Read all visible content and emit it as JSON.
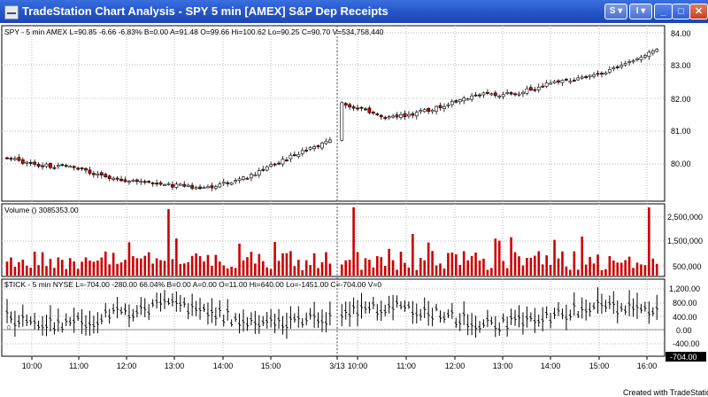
{
  "window": {
    "title": "TradeStation Chart Analysis - SPY  5 min  [AMEX] S&P Dep Receipts",
    "btn_s": "S ▾",
    "btn_i": "I ▾",
    "btn_min": "_",
    "btn_max": "□",
    "btn_close": "✕"
  },
  "price_panel": {
    "header": "SPY - 5 min  AMEX  L=90.85  -6.66  -6.83%  B=0.00  A=91.48  O=99.66  Hi=100.62  Lo=90.25  C=90.70  V=534,758,440",
    "axis_labels": [
      "84.00",
      "83.00",
      "82.00",
      "81.00",
      "80.00"
    ]
  },
  "volume_panel": {
    "header": "Volume ()   3085353.00",
    "axis_labels": [
      "2,500,000",
      "1,500,000",
      "500,000"
    ]
  },
  "tick_panel": {
    "header": "$TICK - 5 min  NYSE  L=-704.00  -280.00  66.04%  B=0.00  A=0.00  O=11.00  Hi=640.00  Lo=-1451.00  C=-704.00  V=0",
    "axis_labels": [
      "1,200.00",
      "800.00",
      "400.00",
      "0.00",
      "-400.00"
    ],
    "last_value": "-704.00",
    "left_marker": "0"
  },
  "time_axis": {
    "labels": [
      "10:00",
      "11:00",
      "12:00",
      "13:00",
      "14:00",
      "15:00",
      "3/13",
      "10:00",
      "11:00",
      "12:00",
      "13:00",
      "14:00",
      "15:00",
      "16:00"
    ]
  },
  "footer": "Created with TradeStation",
  "colors": {
    "up": "#ffffff",
    "down": "#cc0000",
    "volume": "#cc0000",
    "titlebar": "#2656c9"
  }
}
